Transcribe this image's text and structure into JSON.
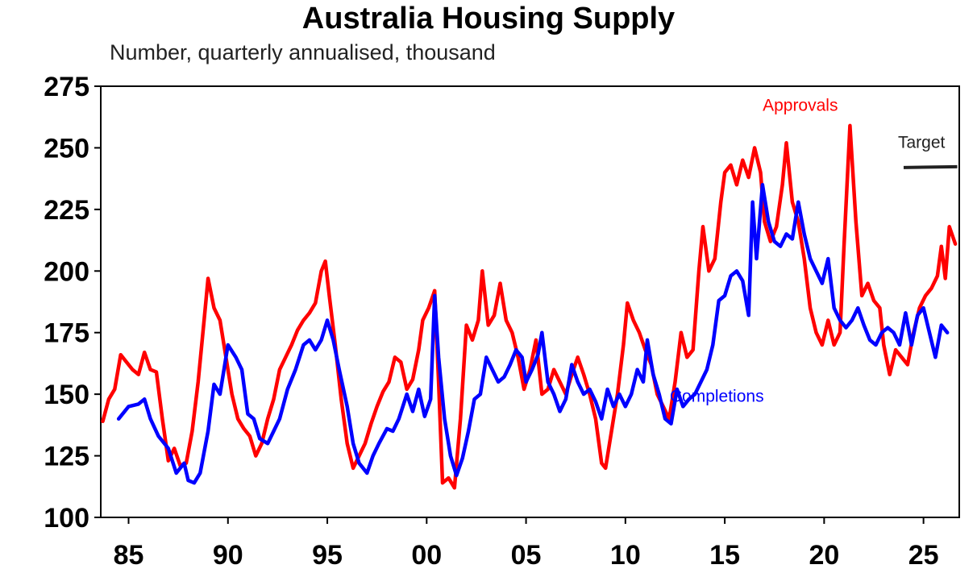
{
  "chart_data": {
    "type": "line",
    "title": "Australia Housing Supply",
    "subtitle": "Number, quarterly annualised, thousand",
    "xlabel": "",
    "ylabel": "",
    "xlim": [
      1983.6,
      2026.8
    ],
    "ylim": [
      100,
      275
    ],
    "yticks": [
      100,
      125,
      150,
      175,
      200,
      225,
      250,
      275
    ],
    "xticks": [
      {
        "value": 1985,
        "label": "85"
      },
      {
        "value": 1990,
        "label": "90"
      },
      {
        "value": 1995,
        "label": "95"
      },
      {
        "value": 2000,
        "label": "00"
      },
      {
        "value": 2005,
        "label": "05"
      },
      {
        "value": 2010,
        "label": "10"
      },
      {
        "value": 2015,
        "label": "15"
      },
      {
        "value": 2020,
        "label": "20"
      },
      {
        "value": 2025,
        "label": "25"
      }
    ],
    "grid": false,
    "series": [
      {
        "name": "Approvals",
        "color": "#ff0000",
        "label_pos": [
          2018.8,
          265
        ],
        "points": [
          [
            1983.7,
            139
          ],
          [
            1984.0,
            148
          ],
          [
            1984.3,
            152
          ],
          [
            1984.6,
            166
          ],
          [
            1984.9,
            163
          ],
          [
            1985.2,
            160
          ],
          [
            1985.5,
            158
          ],
          [
            1985.8,
            167
          ],
          [
            1986.1,
            160
          ],
          [
            1986.4,
            159
          ],
          [
            1986.7,
            140
          ],
          [
            1987.0,
            123
          ],
          [
            1987.3,
            128
          ],
          [
            1987.6,
            121
          ],
          [
            1987.9,
            122
          ],
          [
            1988.2,
            135
          ],
          [
            1988.5,
            155
          ],
          [
            1988.8,
            180
          ],
          [
            1989.0,
            197
          ],
          [
            1989.3,
            185
          ],
          [
            1989.6,
            180
          ],
          [
            1989.9,
            165
          ],
          [
            1990.2,
            150
          ],
          [
            1990.5,
            140
          ],
          [
            1990.8,
            136
          ],
          [
            1991.1,
            133
          ],
          [
            1991.4,
            125
          ],
          [
            1991.7,
            130
          ],
          [
            1992.0,
            140
          ],
          [
            1992.3,
            148
          ],
          [
            1992.6,
            160
          ],
          [
            1992.9,
            165
          ],
          [
            1993.2,
            170
          ],
          [
            1993.5,
            176
          ],
          [
            1993.8,
            180
          ],
          [
            1994.1,
            183
          ],
          [
            1994.4,
            187
          ],
          [
            1994.7,
            200
          ],
          [
            1994.9,
            204
          ],
          [
            1995.1,
            190
          ],
          [
            1995.4,
            170
          ],
          [
            1995.7,
            148
          ],
          [
            1996.0,
            130
          ],
          [
            1996.3,
            120
          ],
          [
            1996.6,
            125
          ],
          [
            1996.9,
            130
          ],
          [
            1997.2,
            138
          ],
          [
            1997.5,
            145
          ],
          [
            1997.8,
            151
          ],
          [
            1998.1,
            155
          ],
          [
            1998.4,
            165
          ],
          [
            1998.7,
            163
          ],
          [
            1999.0,
            152
          ],
          [
            1999.3,
            156
          ],
          [
            1999.6,
            168
          ],
          [
            1999.8,
            180
          ],
          [
            2000.1,
            185
          ],
          [
            2000.4,
            192
          ],
          [
            2000.6,
            155
          ],
          [
            2000.8,
            114
          ],
          [
            2001.1,
            116
          ],
          [
            2001.4,
            112
          ],
          [
            2001.7,
            140
          ],
          [
            2002.0,
            178
          ],
          [
            2002.3,
            172
          ],
          [
            2002.6,
            180
          ],
          [
            2002.8,
            200
          ],
          [
            2003.1,
            178
          ],
          [
            2003.4,
            182
          ],
          [
            2003.7,
            195
          ],
          [
            2004.0,
            180
          ],
          [
            2004.3,
            175
          ],
          [
            2004.6,
            165
          ],
          [
            2004.9,
            152
          ],
          [
            2005.2,
            160
          ],
          [
            2005.5,
            172
          ],
          [
            2005.8,
            150
          ],
          [
            2006.1,
            152
          ],
          [
            2006.4,
            160
          ],
          [
            2006.7,
            155
          ],
          [
            2007.0,
            150
          ],
          [
            2007.3,
            158
          ],
          [
            2007.6,
            165
          ],
          [
            2007.9,
            158
          ],
          [
            2008.2,
            150
          ],
          [
            2008.5,
            140
          ],
          [
            2008.8,
            122
          ],
          [
            2009.0,
            120
          ],
          [
            2009.3,
            135
          ],
          [
            2009.6,
            150
          ],
          [
            2009.9,
            170
          ],
          [
            2010.1,
            187
          ],
          [
            2010.4,
            180
          ],
          [
            2010.7,
            175
          ],
          [
            2011.0,
            168
          ],
          [
            2011.3,
            162
          ],
          [
            2011.6,
            150
          ],
          [
            2011.9,
            145
          ],
          [
            2012.2,
            140
          ],
          [
            2012.5,
            155
          ],
          [
            2012.8,
            175
          ],
          [
            2013.1,
            165
          ],
          [
            2013.4,
            168
          ],
          [
            2013.7,
            200
          ],
          [
            2013.9,
            218
          ],
          [
            2014.2,
            200
          ],
          [
            2014.5,
            205
          ],
          [
            2014.8,
            228
          ],
          [
            2015.0,
            240
          ],
          [
            2015.3,
            243
          ],
          [
            2015.6,
            235
          ],
          [
            2015.9,
            245
          ],
          [
            2016.2,
            238
          ],
          [
            2016.5,
            250
          ],
          [
            2016.8,
            240
          ],
          [
            2017.0,
            220
          ],
          [
            2017.3,
            212
          ],
          [
            2017.6,
            218
          ],
          [
            2017.9,
            235
          ],
          [
            2018.1,
            252
          ],
          [
            2018.4,
            228
          ],
          [
            2018.7,
            220
          ],
          [
            2019.0,
            205
          ],
          [
            2019.3,
            185
          ],
          [
            2019.6,
            175
          ],
          [
            2019.9,
            170
          ],
          [
            2020.2,
            180
          ],
          [
            2020.5,
            170
          ],
          [
            2020.8,
            175
          ],
          [
            2021.0,
            210
          ],
          [
            2021.3,
            259
          ],
          [
            2021.6,
            220
          ],
          [
            2021.9,
            190
          ],
          [
            2022.2,
            195
          ],
          [
            2022.5,
            188
          ],
          [
            2022.8,
            185
          ],
          [
            2023.0,
            170
          ],
          [
            2023.3,
            158
          ],
          [
            2023.6,
            168
          ],
          [
            2023.9,
            165
          ],
          [
            2024.2,
            162
          ],
          [
            2024.5,
            175
          ],
          [
            2024.8,
            185
          ],
          [
            2025.1,
            190
          ],
          [
            2025.4,
            193
          ],
          [
            2025.7,
            198
          ],
          [
            2025.9,
            210
          ],
          [
            2026.1,
            197
          ],
          [
            2026.3,
            218
          ],
          [
            2026.6,
            211
          ]
        ]
      },
      {
        "name": "Completions",
        "color": "#0000ff",
        "label_pos": [
          2014.6,
          147
        ],
        "points": [
          [
            1984.5,
            140
          ],
          [
            1985.0,
            145
          ],
          [
            1985.5,
            146
          ],
          [
            1985.8,
            148
          ],
          [
            1986.1,
            140
          ],
          [
            1986.5,
            133
          ],
          [
            1987.0,
            128
          ],
          [
            1987.4,
            118
          ],
          [
            1987.8,
            122
          ],
          [
            1988.0,
            115
          ],
          [
            1988.3,
            114
          ],
          [
            1988.6,
            118
          ],
          [
            1989.0,
            135
          ],
          [
            1989.3,
            154
          ],
          [
            1989.6,
            150
          ],
          [
            1990.0,
            170
          ],
          [
            1990.4,
            165
          ],
          [
            1990.7,
            160
          ],
          [
            1991.0,
            142
          ],
          [
            1991.3,
            140
          ],
          [
            1991.6,
            132
          ],
          [
            1992.0,
            130
          ],
          [
            1992.3,
            135
          ],
          [
            1992.6,
            140
          ],
          [
            1993.0,
            152
          ],
          [
            1993.4,
            160
          ],
          [
            1993.8,
            170
          ],
          [
            1994.1,
            172
          ],
          [
            1994.4,
            168
          ],
          [
            1994.7,
            172
          ],
          [
            1995.0,
            180
          ],
          [
            1995.3,
            172
          ],
          [
            1995.6,
            160
          ],
          [
            1996.0,
            145
          ],
          [
            1996.3,
            130
          ],
          [
            1996.6,
            122
          ],
          [
            1997.0,
            118
          ],
          [
            1997.3,
            125
          ],
          [
            1997.6,
            130
          ],
          [
            1998.0,
            136
          ],
          [
            1998.3,
            135
          ],
          [
            1998.6,
            140
          ],
          [
            1999.0,
            150
          ],
          [
            1999.3,
            143
          ],
          [
            1999.6,
            152
          ],
          [
            1999.9,
            141
          ],
          [
            2000.2,
            148
          ],
          [
            2000.4,
            190
          ],
          [
            2000.6,
            165
          ],
          [
            2000.9,
            140
          ],
          [
            2001.2,
            125
          ],
          [
            2001.5,
            117
          ],
          [
            2001.8,
            124
          ],
          [
            2002.1,
            135
          ],
          [
            2002.4,
            148
          ],
          [
            2002.7,
            150
          ],
          [
            2003.0,
            165
          ],
          [
            2003.3,
            160
          ],
          [
            2003.6,
            155
          ],
          [
            2003.9,
            157
          ],
          [
            2004.2,
            162
          ],
          [
            2004.5,
            168
          ],
          [
            2004.8,
            165
          ],
          [
            2005.0,
            155
          ],
          [
            2005.3,
            160
          ],
          [
            2005.6,
            166
          ],
          [
            2005.8,
            175
          ],
          [
            2006.1,
            155
          ],
          [
            2006.4,
            150
          ],
          [
            2006.7,
            143
          ],
          [
            2007.0,
            148
          ],
          [
            2007.3,
            162
          ],
          [
            2007.6,
            155
          ],
          [
            2007.9,
            150
          ],
          [
            2008.2,
            152
          ],
          [
            2008.5,
            147
          ],
          [
            2008.8,
            140
          ],
          [
            2009.1,
            152
          ],
          [
            2009.4,
            145
          ],
          [
            2009.7,
            150
          ],
          [
            2010.0,
            145
          ],
          [
            2010.3,
            150
          ],
          [
            2010.6,
            160
          ],
          [
            2010.9,
            155
          ],
          [
            2011.1,
            172
          ],
          [
            2011.4,
            158
          ],
          [
            2011.7,
            150
          ],
          [
            2012.0,
            140
          ],
          [
            2012.3,
            138
          ],
          [
            2012.6,
            152
          ],
          [
            2012.9,
            145
          ],
          [
            2013.2,
            148
          ],
          [
            2013.5,
            150
          ],
          [
            2013.8,
            155
          ],
          [
            2014.1,
            160
          ],
          [
            2014.4,
            170
          ],
          [
            2014.7,
            188
          ],
          [
            2015.0,
            190
          ],
          [
            2015.3,
            198
          ],
          [
            2015.6,
            200
          ],
          [
            2015.9,
            196
          ],
          [
            2016.2,
            182
          ],
          [
            2016.4,
            228
          ],
          [
            2016.6,
            205
          ],
          [
            2016.9,
            235
          ],
          [
            2017.2,
            220
          ],
          [
            2017.5,
            212
          ],
          [
            2017.8,
            210
          ],
          [
            2018.1,
            215
          ],
          [
            2018.4,
            213
          ],
          [
            2018.7,
            228
          ],
          [
            2019.0,
            215
          ],
          [
            2019.3,
            205
          ],
          [
            2019.6,
            200
          ],
          [
            2019.9,
            195
          ],
          [
            2020.2,
            205
          ],
          [
            2020.5,
            185
          ],
          [
            2020.8,
            180
          ],
          [
            2021.1,
            177
          ],
          [
            2021.4,
            180
          ],
          [
            2021.7,
            185
          ],
          [
            2022.0,
            178
          ],
          [
            2022.3,
            172
          ],
          [
            2022.6,
            170
          ],
          [
            2022.9,
            175
          ],
          [
            2023.2,
            177
          ],
          [
            2023.5,
            175
          ],
          [
            2023.8,
            170
          ],
          [
            2024.1,
            183
          ],
          [
            2024.4,
            170
          ],
          [
            2024.7,
            182
          ],
          [
            2025.0,
            185
          ],
          [
            2025.3,
            175
          ],
          [
            2025.6,
            165
          ],
          [
            2025.9,
            178
          ],
          [
            2026.2,
            175
          ]
        ]
      }
    ],
    "annotations": [
      {
        "text": "Target",
        "value": 242,
        "x_range": [
          2024.0,
          2026.7
        ],
        "label_pos": [
          2024.9,
          250
        ],
        "color": "#222222"
      }
    ]
  }
}
